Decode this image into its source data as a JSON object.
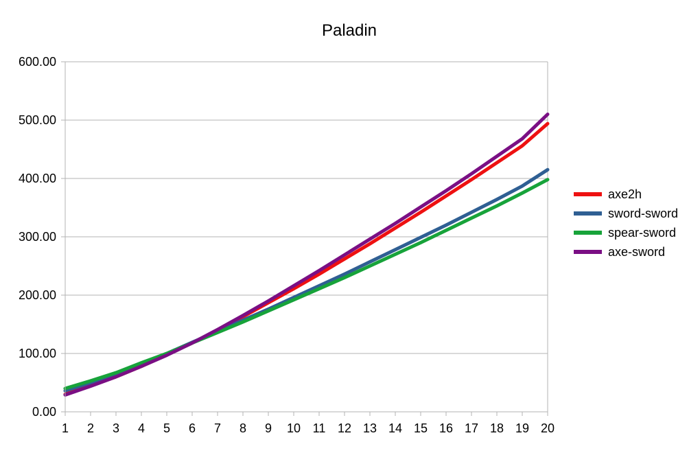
{
  "chart_data": {
    "type": "line",
    "title": "Paladin",
    "xlabel": "",
    "ylabel": "",
    "x": [
      1,
      2,
      3,
      4,
      5,
      6,
      7,
      8,
      9,
      10,
      11,
      12,
      13,
      14,
      15,
      16,
      17,
      18,
      19,
      20
    ],
    "ylim": [
      0,
      600
    ],
    "y_ticks": [
      "0.00",
      "100.00",
      "200.00",
      "300.00",
      "400.00",
      "500.00",
      "600.00"
    ],
    "y_tick_values": [
      0,
      100,
      200,
      300,
      400,
      500,
      600
    ],
    "grid": true,
    "legend": "right",
    "series": [
      {
        "name": "axe2h",
        "color": "#ee1111",
        "values": [
          30,
          45,
          60,
          78,
          98,
          118,
          140,
          163,
          187,
          211,
          236,
          262,
          288,
          315,
          342,
          370,
          398,
          427,
          456,
          494
        ]
      },
      {
        "name": "sword-sword",
        "color": "#2f5f93",
        "values": [
          36,
          50,
          65,
          82,
          100,
          119,
          138,
          157,
          176,
          196,
          216,
          236,
          257,
          278,
          299,
          320,
          342,
          364,
          387,
          415
        ]
      },
      {
        "name": "spear-sword",
        "color": "#17a33a",
        "values": [
          40,
          53,
          67,
          84,
          100,
          118,
          136,
          154,
          173,
          192,
          211,
          230,
          250,
          270,
          290,
          311,
          332,
          353,
          375,
          398
        ]
      },
      {
        "name": "axe-sword",
        "color": "#7a0f84",
        "values": [
          29,
          44,
          60,
          78,
          97,
          118,
          141,
          165,
          190,
          216,
          242,
          269,
          296,
          323,
          351,
          379,
          408,
          438,
          468,
          510
        ]
      }
    ]
  }
}
